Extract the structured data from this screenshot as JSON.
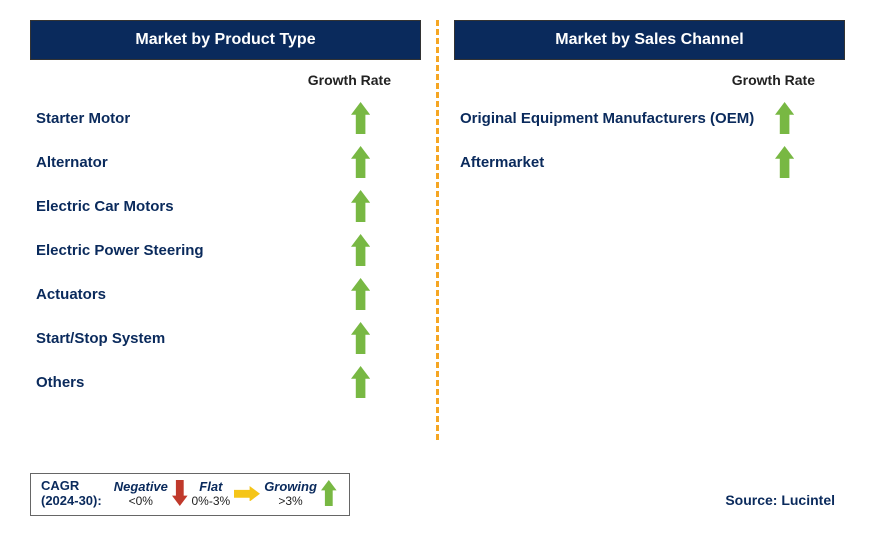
{
  "colors": {
    "header_bg": "#0a2a5c",
    "header_text": "#ffffff",
    "label_text": "#0a2a5c",
    "divider": "#f5a623",
    "arrow_green": "#78b843",
    "arrow_red": "#c0392b",
    "arrow_yellow": "#f5c518"
  },
  "left": {
    "title": "Market by Product Type",
    "growth_label": "Growth Rate",
    "items": [
      {
        "label": "Starter Motor",
        "dir": "up"
      },
      {
        "label": "Alternator",
        "dir": "up"
      },
      {
        "label": "Electric Car Motors",
        "dir": "up"
      },
      {
        "label": "Electric Power Steering",
        "dir": "up"
      },
      {
        "label": "Actuators",
        "dir": "up"
      },
      {
        "label": "Start/Stop System",
        "dir": "up"
      },
      {
        "label": "Others",
        "dir": "up"
      }
    ]
  },
  "right": {
    "title": "Market by Sales Channel",
    "growth_label": "Growth Rate",
    "items": [
      {
        "label": "Original Equipment Manufacturers (OEM)",
        "dir": "up"
      },
      {
        "label": "Aftermarket",
        "dir": "up"
      }
    ]
  },
  "legend": {
    "left_line1": "CAGR",
    "left_line2": "(2024-30):",
    "items": [
      {
        "cat": "Negative",
        "range": "<0%",
        "dir": "down"
      },
      {
        "cat": "Flat",
        "range": "0%-3%",
        "dir": "right"
      },
      {
        "cat": "Growing",
        "range": ">3%",
        "dir": "up"
      }
    ]
  },
  "source": "Source: Lucintel"
}
